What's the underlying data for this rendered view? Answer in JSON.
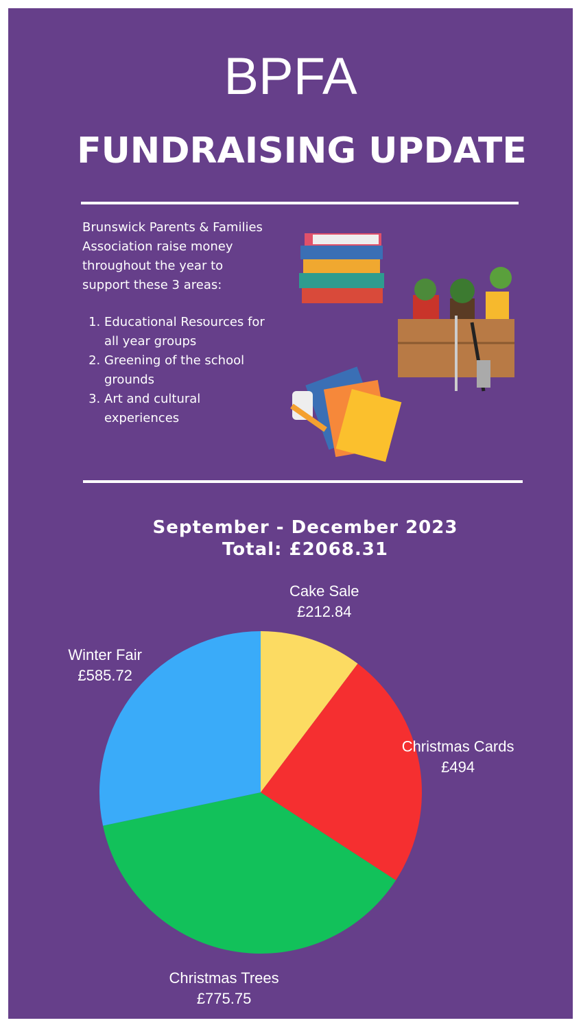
{
  "header": {
    "title": "BPFA",
    "subtitle": "FUNDRAISING UPDATE"
  },
  "intro": {
    "text": "Brunswick Parents & Families Association raise money throughout the year to support these 3 areas:",
    "items": [
      "Educational Resources for all year groups",
      "Greening of the school grounds",
      "Art and cultural experiences"
    ]
  },
  "chart_data": {
    "type": "pie",
    "title": "September - December 2023",
    "subtitle": "Total: £2068.31",
    "categories": [
      "Cake Sale",
      "Christmas Cards",
      "Christmas Trees",
      "Winter Fair"
    ],
    "values": [
      212.84,
      494,
      775.75,
      585.72
    ],
    "value_labels": [
      "£212.84",
      "£494",
      "£775.75",
      "£585.72"
    ],
    "colors": [
      "#fcdb62",
      "#f52f30",
      "#12c15a",
      "#3aabf9"
    ]
  }
}
